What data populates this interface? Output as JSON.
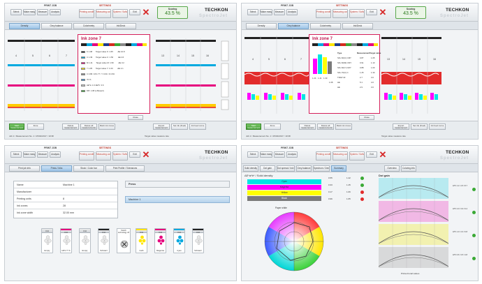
{
  "common": {
    "print_job": "PRINT JOB",
    "settings": "SETTINGS",
    "logo": "TECHKON",
    "logo_sub": "SpectroJet",
    "btn_select": "Select",
    "btn_make_ready": "Make ready",
    "btn_measure": "Measure",
    "btn_analysis": "Analysis",
    "btn_printing_conditions": "Printing conditions",
    "btn_measuring_conditions": "Measuring conditions",
    "btn_system_software": "System / Software",
    "btn_exit": "Exit",
    "scoring_label": "Scoring",
    "scoring_value": "43.5 %"
  },
  "panel_tl": {
    "tabs": [
      "Density",
      "Grey balance",
      "Colorimetry",
      "Ink/Deck"
    ],
    "zones_left": [
      "4",
      "5",
      "6",
      "7"
    ],
    "zones_right": [
      "13",
      "14",
      "15",
      "16"
    ],
    "popup_title": "Ink zone 7",
    "legend": [
      {
        "label": "K 1.08",
        "value": "Target value K: 1.65",
        "extra": "ΔE 10.8",
        "color": "#222222"
      },
      {
        "label": "C 1.39",
        "value": "Target value C: 1.50",
        "extra": "ΔE 4.6",
        "color": "#00a9e0"
      },
      {
        "label": "M 1.41",
        "value": "Target value M: 1.50",
        "extra": "ΔE 3.2",
        "color": "#e6007e"
      },
      {
        "label": "Y 1.05",
        "value": "Target value Y: 1.00",
        "extra": "ΔE 2.1",
        "color": "#ffe600"
      },
      {
        "label": "C 0.86 / M 0.77 / Y 0.64 / K 0.84",
        "value": "",
        "extra": "",
        "color": "#8a8a8a"
      },
      {
        "label": "70 %",
        "value": "",
        "extra": "",
        "color": "#2c8fd6"
      },
      {
        "label": "ΔE*a: 1.6   ΔE*b: 3.6",
        "value": "",
        "extra": "",
        "color": "#c0c0c0"
      },
      {
        "label": "Diff. 1.08 (x-Bewert)",
        "value": "",
        "extra": "",
        "color": "#39a935"
      }
    ],
    "close_label": "Close",
    "footer": [
      "Start measurement",
      "Zone",
      "Delete measurement",
      "Delete all measurements",
      "Mark ink zones",
      "Export measurement",
      "Set ink (fixed)",
      "Ink feed curve"
    ],
    "status": "Job 1 / Measurement No. 1 / 25/04/2017 / 10:38",
    "status_right": "Target value   measure rate"
  },
  "panel_tr": {
    "tabs": [
      "Density",
      "Grey balance",
      "Colorimetry",
      "Ink/Deck"
    ],
    "zones_left": [
      "4",
      "5",
      "6",
      "7"
    ],
    "zones_right": [
      "13",
      "14",
      "15",
      "16"
    ],
    "popup_title": "Ink zone 7",
    "table_headers": [
      "Type",
      "Measurement",
      "Target value"
    ],
    "table_rows": [
      [
        "SFL.60(C) CMY",
        "0.87",
        "1.05"
      ],
      [
        "SFL.60(M) CMY",
        "0.91",
        "1.10"
      ],
      [
        "SFL.60(Y) CMY",
        "0.88",
        "1.00"
      ],
      [
        "SFL.70(C) C",
        "1.25",
        "1.30"
      ],
      [
        "TRAP 40",
        "2.7",
        "3.0"
      ],
      [
        "ΔE",
        "5.1",
        "4.0"
      ],
      [
        "ΔE",
        "2.9",
        "3.0"
      ]
    ],
    "bar_values": [
      "1.24",
      "1.41",
      "1.30",
      "1.08"
    ],
    "close_label": "Close",
    "footer": [
      "Start measurement",
      "Zone",
      "Delete measurement",
      "Delete all measurements",
      "Mark ink zones",
      "Export measurement",
      "Set ink (fixed)",
      "Ink feed curve"
    ],
    "status": "Job 1 / Measurement No. 1 / 25/04/2017 / 10:38",
    "status_right": "Target value   measure rate"
  },
  "panel_bl": {
    "tabs": [
      "Print job info",
      "Press / Inks",
      "Stock / Color bar",
      "Print Profile / Tolerances"
    ],
    "table": [
      {
        "k": "Name",
        "v": "Machine 1"
      },
      {
        "k": "Manufacturer",
        "v": ""
      },
      {
        "k": "Printing units",
        "v": "8"
      },
      {
        "k": "Ink zones",
        "v": "28"
      },
      {
        "k": "Ink zone width",
        "v": "32.00 mm"
      }
    ],
    "right_header": "Press",
    "right_item": "Machine 1",
    "units": [
      {
        "cap": "Unit",
        "name": "Empty",
        "color": "#ffffff"
      },
      {
        "cap": "Unit",
        "name": "HKS 77 K",
        "color": "#e6007e"
      },
      {
        "cap": "Unit",
        "name": "Empty",
        "color": "#ffffff"
      },
      {
        "cap": "Unit",
        "name": "Schwarz",
        "color": "#222222"
      },
      {
        "cap": "Unit",
        "name": "Gelb",
        "color": "#ffe600"
      },
      {
        "cap": "Unit",
        "name": "Magenta",
        "color": "#e6007e"
      },
      {
        "cap": "Unit",
        "name": "Cyan",
        "color": "#00a9e0"
      },
      {
        "cap": "Unit",
        "name": "Schwarz",
        "color": "#222222"
      }
    ],
    "switch_label": "Switch technology off"
  },
  "panel_br": {
    "tabs": [
      "Solid density",
      "Dot gain",
      "Dot spread / Ink trapping",
      "Grey balance",
      "Spectrum / Density",
      "Summary",
      "Overview",
      "Coloring info"
    ],
    "chart_title": "ΔE*a*b* / Solid density",
    "density_rows": [
      {
        "label": "Cyan",
        "d1": "0.55",
        "d2": "1.42",
        "color": "#00e5e5"
      },
      {
        "label": "Magenta",
        "d1": "0.33",
        "d2": "1.45",
        "color": "#ff00ff"
      },
      {
        "label": "Yellow",
        "d1": "0.17",
        "d2": "1.06",
        "color": "#ffff00"
      },
      {
        "label": "Black",
        "d1": "0.96",
        "d2": "1.65",
        "color": "#7a7a7a"
      }
    ],
    "paper_white": "Paper white",
    "dot_gain_title": "Dot gain",
    "dot_gain_xlabel": "Printed tonal values",
    "dot_gain_legends": [
      "ΔTV 1.2 / 4.5 / 8.7",
      "ΔTV 2.0 / 3.9 / 9.4",
      "ΔTV 1.0 / 4.3 / 6.8",
      "ΔTV 0.6 / 3.5 / 4.8"
    ],
    "dot_gain_colors": [
      "#4dd6e6",
      "#f06fd0",
      "#f2ee5c",
      "#bdbdbd"
    ]
  }
}
